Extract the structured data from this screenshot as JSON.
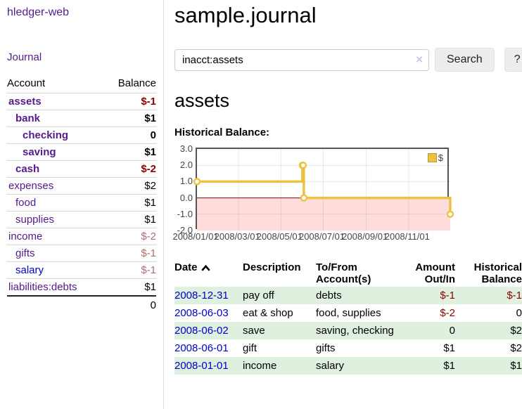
{
  "colors": {
    "link_visited": "#551a8b",
    "link_unvisited": "#0000cc",
    "negative_strong": "#8b0000",
    "negative_muted": "#b06f6f",
    "stripe_green": "#dff0df",
    "chart_line": "#edc240",
    "chart_negative_fill": "#ffdddd",
    "chart_zero_line": "#8b0000"
  },
  "sidebar": {
    "app_title": "hledger-web",
    "journal_label": "Journal",
    "accounts_header": {
      "account": "Account",
      "balance": "Balance"
    },
    "accounts": [
      {
        "label": "assets",
        "indent": 1,
        "bold": true,
        "balance": "$-1"
      },
      {
        "label": "bank",
        "indent": 2,
        "bold": true,
        "balance": "$1"
      },
      {
        "label": "checking",
        "indent": 3,
        "bold": true,
        "balance": "0"
      },
      {
        "label": "saving",
        "indent": 3,
        "bold": true,
        "balance": "$1"
      },
      {
        "label": "cash",
        "indent": 2,
        "bold": true,
        "balance": "$-2"
      },
      {
        "label": "expenses",
        "indent": 1,
        "bold": false,
        "balance": "$2"
      },
      {
        "label": "food",
        "indent": 2,
        "bold": false,
        "balance": "$1"
      },
      {
        "label": "supplies",
        "indent": 2,
        "bold": false,
        "balance": "$1"
      },
      {
        "label": "income",
        "indent": 1,
        "bold": false,
        "balance": "$-2"
      },
      {
        "label": "gifts",
        "indent": 2,
        "bold": false,
        "balance": "$-1"
      },
      {
        "label": "salary",
        "indent": 2,
        "bold": false,
        "balance": "$-1",
        "unvisited": true
      },
      {
        "label": "liabilities:debts",
        "indent": 1,
        "bold": false,
        "balance": "$1"
      }
    ],
    "total": "0"
  },
  "main": {
    "title": "sample.journal",
    "search": {
      "value": "inacct:assets",
      "clear_icon": "×",
      "button_label": "Search",
      "help_label": "?"
    },
    "heading": "assets"
  },
  "chart_data": {
    "type": "line",
    "title": "Historical Balance:",
    "step": true,
    "grid": true,
    "legend_position": "top-right",
    "x_range": [
      "2008-01-01",
      "2008-12-31"
    ],
    "ylim": [
      -2.0,
      3.0
    ],
    "y_ticks": [
      3.0,
      2.0,
      1.0,
      0.0,
      -1.0,
      -2.0
    ],
    "x_ticks": [
      {
        "label": "2008/01/01",
        "date": "2008-01-01"
      },
      {
        "label": "2008/03/01",
        "date": "2008-03-01"
      },
      {
        "label": "2008/05/01",
        "date": "2008-05-01"
      },
      {
        "label": "2008/07/01",
        "date": "2008-07-01"
      },
      {
        "label": "2008/09/01",
        "date": "2008-09-01"
      },
      {
        "label": "2008/11/01",
        "date": "2008-11-01"
      }
    ],
    "series": [
      {
        "name": "$",
        "points": [
          {
            "date": "2008-01-01",
            "value": 1
          },
          {
            "date": "2008-06-01",
            "value": 2
          },
          {
            "date": "2008-06-02",
            "value": 2
          },
          {
            "date": "2008-06-03",
            "value": 0
          },
          {
            "date": "2008-12-31",
            "value": -1
          }
        ]
      }
    ]
  },
  "register": {
    "columns": [
      "Date",
      "Description",
      "To/From Account(s)",
      "Amount Out/In",
      "Historical Balance"
    ],
    "sort": {
      "column": "Date",
      "direction": "ascending"
    },
    "rows": [
      {
        "date": "2008-12-31",
        "description": "pay off",
        "accounts": "debts",
        "amount": "$-1",
        "balance": "$-1"
      },
      {
        "date": "2008-06-03",
        "description": "eat & shop",
        "accounts": "food, supplies",
        "amount": "$-2",
        "balance": "0"
      },
      {
        "date": "2008-06-02",
        "description": "save",
        "accounts": "saving, checking",
        "amount": "0",
        "balance": "$2"
      },
      {
        "date": "2008-06-01",
        "description": "gift",
        "accounts": "gifts",
        "amount": "$1",
        "balance": "$2"
      },
      {
        "date": "2008-01-01",
        "description": "income",
        "accounts": "salary",
        "amount": "$1",
        "balance": "$1"
      }
    ]
  }
}
